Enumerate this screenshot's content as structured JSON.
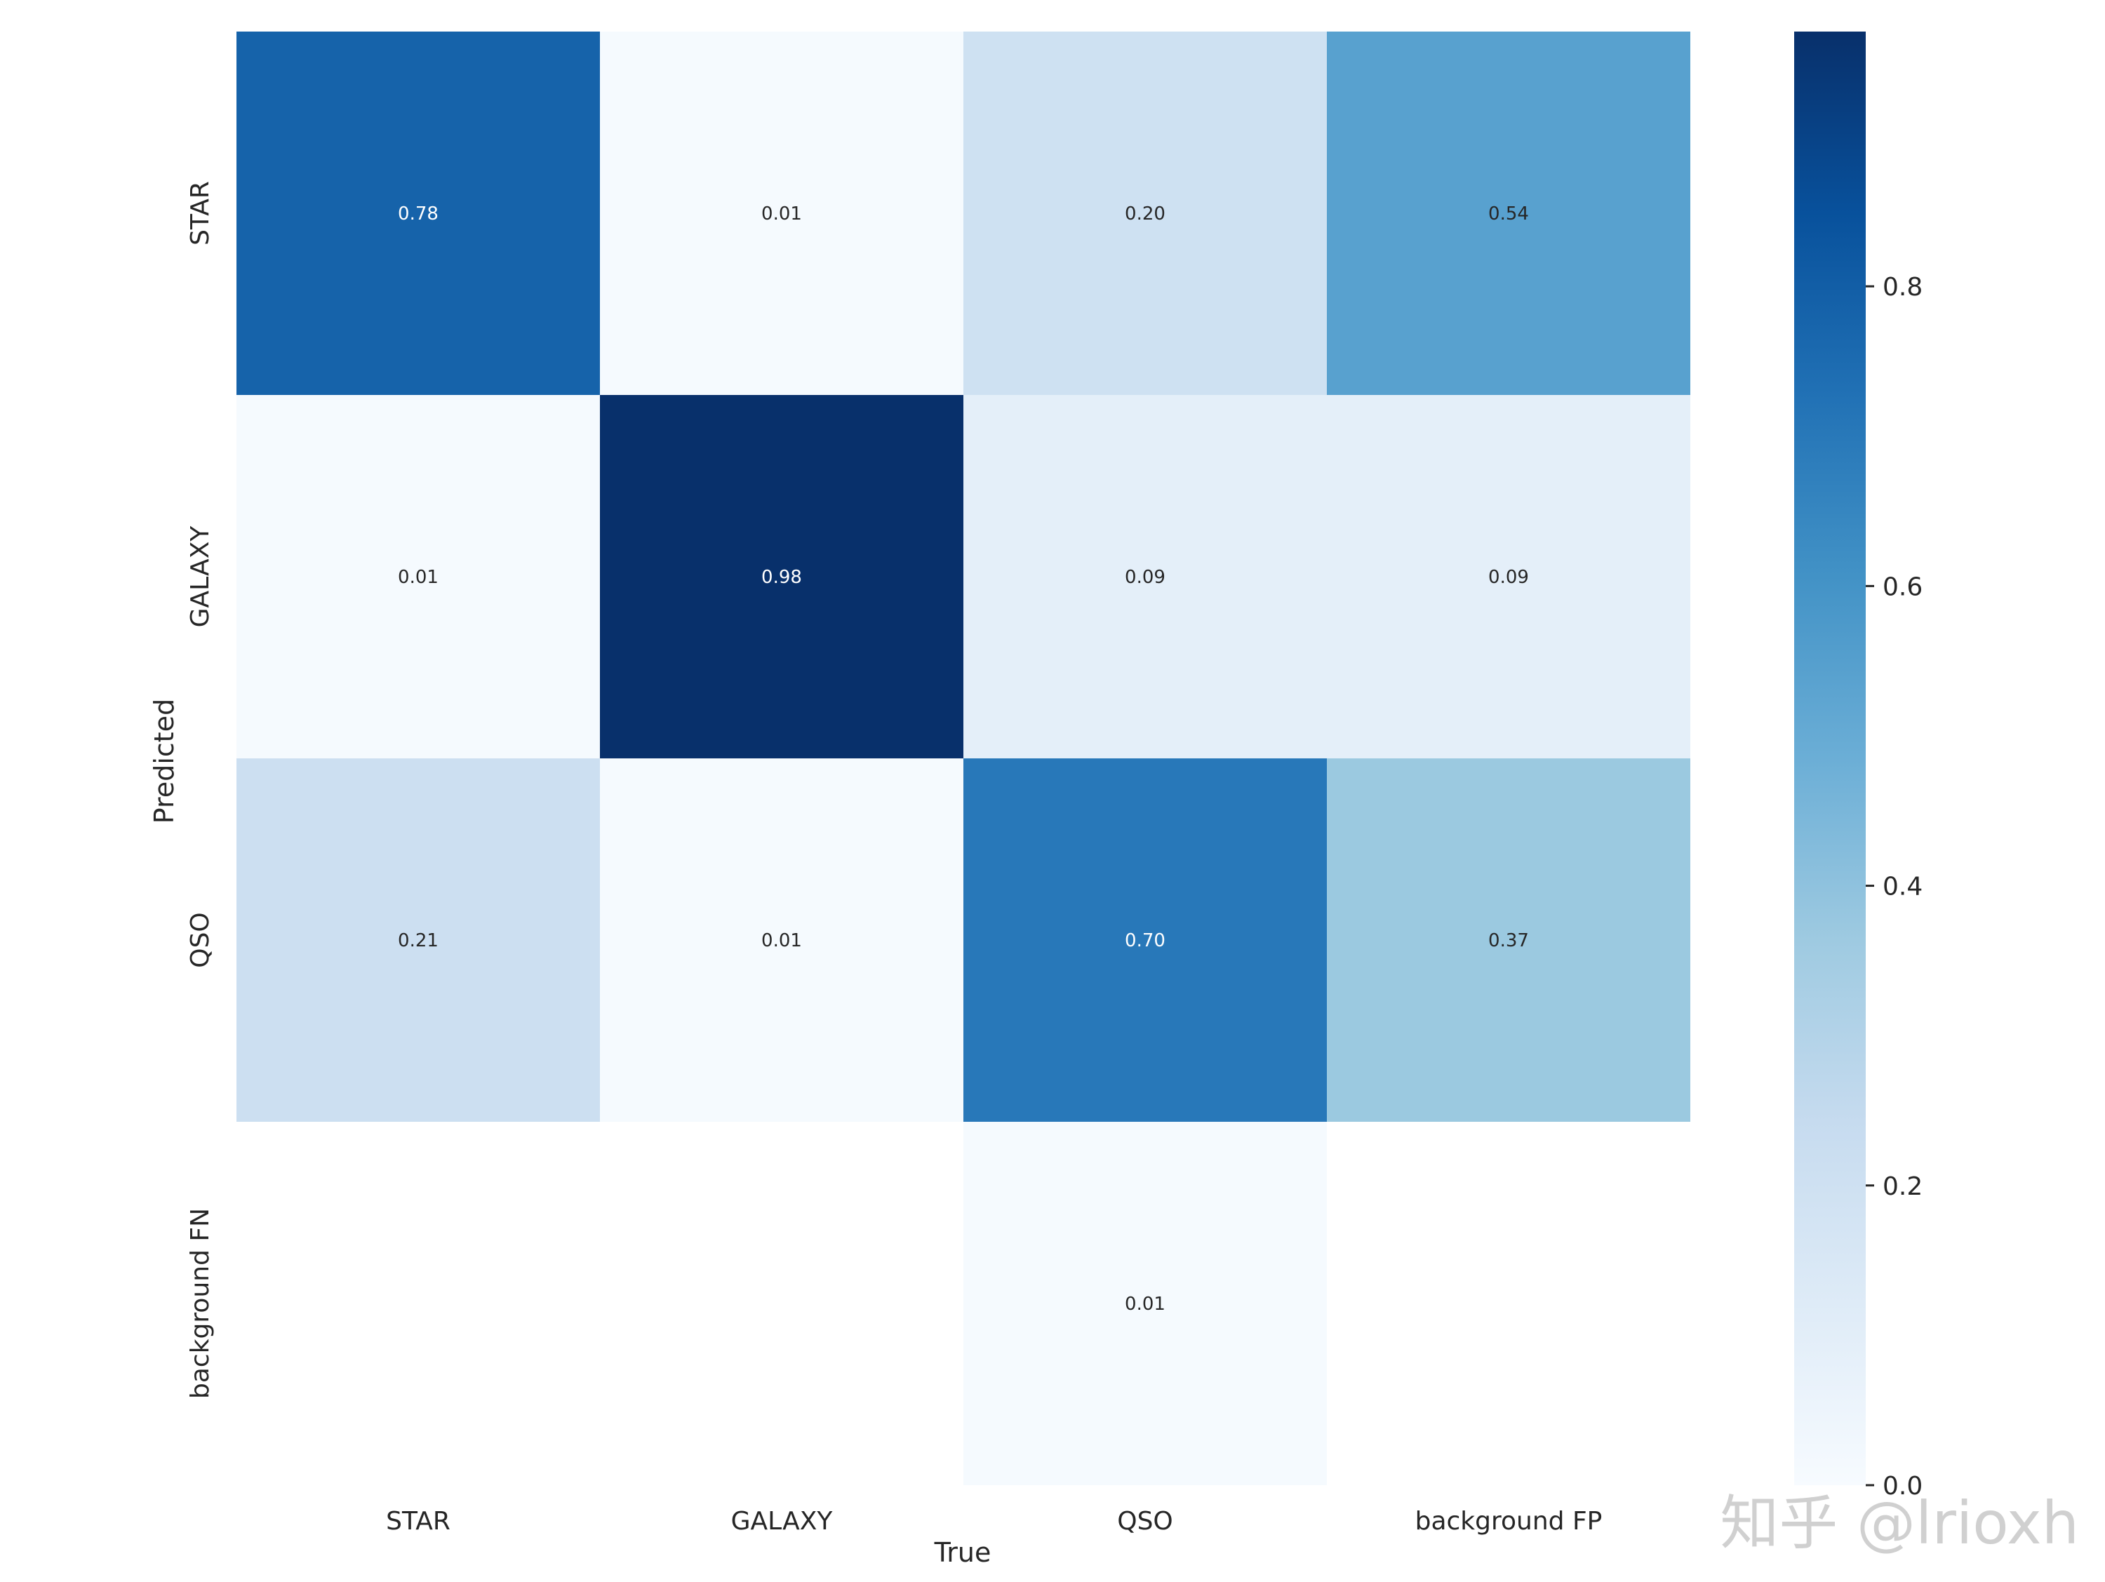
{
  "chart_data": {
    "type": "heatmap",
    "title": "",
    "xlabel": "True",
    "ylabel": "Predicted",
    "x_categories": [
      "STAR",
      "GALAXY",
      "QSO",
      "background FP"
    ],
    "y_categories": [
      "STAR",
      "GALAXY",
      "QSO",
      "background FN"
    ],
    "values": [
      [
        0.78,
        0.01,
        0.2,
        0.54
      ],
      [
        0.01,
        0.98,
        0.09,
        0.09
      ],
      [
        0.21,
        0.01,
        0.7,
        0.37
      ],
      [
        null,
        null,
        0.01,
        null
      ]
    ],
    "annotations": [
      [
        "0.78",
        "0.01",
        "0.20",
        "0.54"
      ],
      [
        "0.01",
        "0.98",
        "0.09",
        "0.09"
      ],
      [
        "0.21",
        "0.01",
        "0.70",
        "0.37"
      ],
      [
        "",
        "",
        "0.01",
        ""
      ]
    ],
    "colormap": "Blues",
    "colormap_stops": [
      "#f7fbff",
      "#deebf7",
      "#c6dbef",
      "#9ecae1",
      "#6baed6",
      "#4292c6",
      "#2171b5",
      "#08519c",
      "#08306b"
    ],
    "vmin": 0.0,
    "vmax": 0.97,
    "colorbar": {
      "ticks": [
        0.0,
        0.2,
        0.4,
        0.6,
        0.8
      ],
      "tick_labels": [
        "0.0",
        "0.2",
        "0.4",
        "0.6",
        "0.8"
      ]
    },
    "grid": false,
    "legend": "colorbar-right"
  },
  "watermark": {
    "text": "知乎 @lrioxh",
    "color": "#c8c8c8"
  }
}
